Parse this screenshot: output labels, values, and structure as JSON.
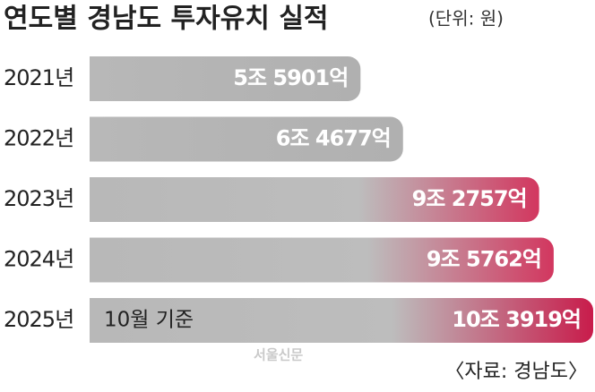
{
  "chart_data": {
    "type": "bar",
    "orientation": "horizontal",
    "title": "연도별 경남도 투자유치 실적",
    "subtitle": "(단위: 원)",
    "categories": [
      "2021년",
      "2022년",
      "2023년",
      "2024년",
      "2025년"
    ],
    "values": [
      55901,
      64677,
      92757,
      95762,
      103919
    ],
    "value_labels": [
      "5조  5901억",
      "6조 4677억",
      "9조 2757억",
      "9조 5762억",
      "10조 3919억"
    ],
    "colors": [
      "#aaaaaa",
      "#aaaaaa",
      "#d2375f",
      "#d2375f",
      "#c81c4b"
    ],
    "annotations": [
      {
        "category": "2025년",
        "text": "10월 기준"
      }
    ],
    "watermark": "서울신문",
    "source": "〈자료: 경남도〉"
  }
}
